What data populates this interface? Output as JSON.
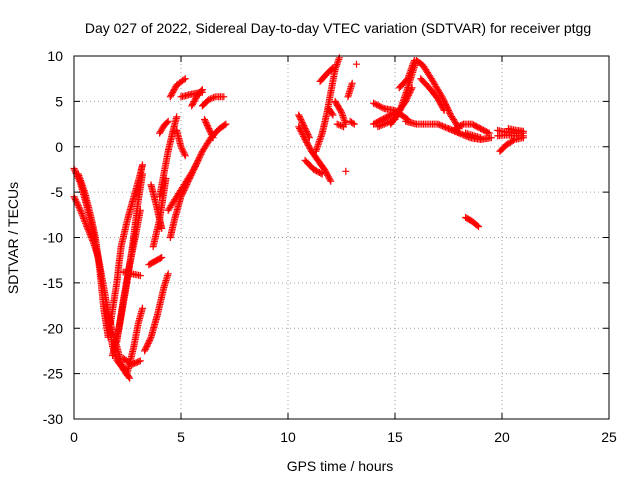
{
  "chart_data": {
    "type": "scatter",
    "title": "Day 027 of 2022, Sidereal Day-to-day VTEC variation (SDTVAR) for receiver ptgg",
    "xlabel": "GPS time / hours",
    "ylabel": "SDTVAR / TECUs",
    "xlim": [
      0,
      25
    ],
    "ylim": [
      -30,
      10
    ],
    "x_ticks": [
      0,
      5,
      10,
      15,
      20,
      25
    ],
    "y_ticks": [
      -30,
      -25,
      -20,
      -15,
      -10,
      -5,
      0,
      5,
      10
    ],
    "grid": true,
    "marker": "+",
    "colors": {
      "series": "#ff0000",
      "grid": "#a0a0a0",
      "axes": "#000000"
    },
    "tracks": [
      [
        [
          0.0,
          -2.4
        ],
        [
          0.3,
          -4.0
        ],
        [
          0.6,
          -6.5
        ],
        [
          0.9,
          -9.5
        ],
        [
          1.2,
          -13.0
        ],
        [
          1.5,
          -17.0
        ],
        [
          1.8,
          -20.5
        ],
        [
          2.0,
          -22.0
        ],
        [
          2.2,
          -23.8
        ],
        [
          2.5,
          -25.2
        ]
      ],
      [
        [
          0.0,
          -5.5
        ],
        [
          0.3,
          -7.0
        ],
        [
          0.6,
          -8.8
        ],
        [
          0.9,
          -10.5
        ],
        [
          1.1,
          -12.0
        ]
      ],
      [
        [
          0.2,
          -3.0
        ],
        [
          0.5,
          -5.0
        ],
        [
          0.8,
          -7.8
        ],
        [
          1.0,
          -10.0
        ],
        [
          1.2,
          -13.5
        ],
        [
          1.4,
          -18.0
        ],
        [
          1.6,
          -21.0
        ]
      ],
      [
        [
          1.6,
          -19.0
        ],
        [
          1.8,
          -22.0
        ],
        [
          2.0,
          -23.5
        ],
        [
          2.3,
          -24.5
        ],
        [
          2.6,
          -25.5
        ]
      ],
      [
        [
          1.7,
          -19.5
        ],
        [
          2.0,
          -15.0
        ],
        [
          2.2,
          -11.0
        ],
        [
          2.5,
          -8.0
        ],
        [
          2.8,
          -5.5
        ],
        [
          3.1,
          -3.0
        ],
        [
          3.2,
          -2.0
        ]
      ],
      [
        [
          1.8,
          -23.0
        ],
        [
          2.1,
          -20.0
        ],
        [
          2.4,
          -16.0
        ],
        [
          2.7,
          -11.5
        ],
        [
          3.0,
          -6.0
        ],
        [
          3.2,
          -3.0
        ]
      ],
      [
        [
          2.0,
          -21.5
        ],
        [
          2.3,
          -17.0
        ],
        [
          2.6,
          -13.0
        ],
        [
          2.9,
          -9.5
        ],
        [
          3.1,
          -7.0
        ]
      ],
      [
        [
          2.3,
          -13.8
        ],
        [
          2.7,
          -14.0
        ],
        [
          3.1,
          -14.2
        ]
      ],
      [
        [
          2.3,
          -23.3
        ],
        [
          2.7,
          -24.0
        ],
        [
          3.1,
          -23.6
        ]
      ],
      [
        [
          2.5,
          -24.8
        ],
        [
          2.8,
          -22.0
        ],
        [
          3.0,
          -19.5
        ],
        [
          3.2,
          -17.8
        ]
      ],
      [
        [
          3.3,
          -22.5
        ],
        [
          3.6,
          -21.0
        ],
        [
          3.9,
          -18.5
        ],
        [
          4.2,
          -15.5
        ],
        [
          4.4,
          -14.0
        ]
      ],
      [
        [
          3.5,
          -13.0
        ],
        [
          3.8,
          -12.6
        ],
        [
          4.1,
          -12.2
        ]
      ],
      [
        [
          3.6,
          -4.2
        ],
        [
          3.8,
          -6.0
        ],
        [
          4.0,
          -8.0
        ],
        [
          4.1,
          -9.0
        ]
      ],
      [
        [
          3.7,
          -11.0
        ],
        [
          4.0,
          -8.0
        ],
        [
          4.2,
          -5.0
        ],
        [
          4.3,
          -3.5
        ]
      ],
      [
        [
          4.0,
          -5.5
        ],
        [
          4.2,
          -3.0
        ],
        [
          4.4,
          -0.5
        ],
        [
          4.6,
          1.5
        ],
        [
          4.8,
          3.3
        ]
      ],
      [
        [
          4.4,
          -7.0
        ],
        [
          4.8,
          -5.5
        ],
        [
          5.2,
          -4.0
        ],
        [
          5.6,
          -2.5
        ],
        [
          6.0,
          -0.5
        ],
        [
          6.4,
          1.0
        ],
        [
          6.8,
          2.0
        ],
        [
          7.1,
          2.5
        ]
      ],
      [
        [
          4.5,
          -10.0
        ],
        [
          4.7,
          -8.0
        ],
        [
          5.0,
          -5.5
        ],
        [
          5.3,
          -4.0
        ],
        [
          5.7,
          -2.0
        ]
      ],
      [
        [
          4.0,
          1.5
        ],
        [
          4.2,
          2.3
        ],
        [
          4.4,
          2.8
        ]
      ],
      [
        [
          4.8,
          1.8
        ],
        [
          5.0,
          0.0
        ],
        [
          5.2,
          -1.0
        ]
      ],
      [
        [
          4.5,
          5.5
        ],
        [
          4.8,
          6.8
        ],
        [
          5.2,
          7.5
        ]
      ],
      [
        [
          5.0,
          5.5
        ],
        [
          5.5,
          5.8
        ],
        [
          6.0,
          6.0
        ]
      ],
      [
        [
          5.5,
          4.5
        ],
        [
          5.8,
          5.8
        ],
        [
          6.0,
          6.3
        ]
      ],
      [
        [
          6.0,
          4.5
        ],
        [
          6.3,
          5.2
        ],
        [
          6.6,
          5.5
        ],
        [
          7.0,
          5.5
        ]
      ],
      [
        [
          6.1,
          3.0
        ],
        [
          6.3,
          2.0
        ],
        [
          6.5,
          1.0
        ]
      ],
      [
        [
          10.5,
          2.2
        ],
        [
          10.8,
          0.8
        ],
        [
          11.1,
          -0.5
        ],
        [
          11.4,
          -1.5
        ],
        [
          11.7,
          -2.5
        ],
        [
          12.0,
          -3.8
        ]
      ],
      [
        [
          10.5,
          3.5
        ],
        [
          10.8,
          2.0
        ],
        [
          11.0,
          1.0
        ]
      ],
      [
        [
          10.8,
          -1.5
        ],
        [
          11.2,
          -2.5
        ],
        [
          11.6,
          -3.0
        ]
      ],
      [
        [
          11.3,
          -0.5
        ],
        [
          11.6,
          1.5
        ],
        [
          11.8,
          3.5
        ],
        [
          12.0,
          6.0
        ],
        [
          12.2,
          8.5
        ],
        [
          12.4,
          9.8
        ]
      ],
      [
        [
          11.5,
          7.2
        ],
        [
          11.8,
          8.0
        ],
        [
          12.1,
          8.7
        ]
      ],
      [
        [
          11.9,
          4.2
        ],
        [
          12.1,
          3.5
        ]
      ],
      [
        [
          12.2,
          5.0
        ],
        [
          12.5,
          3.8
        ],
        [
          12.7,
          2.5
        ]
      ],
      [
        [
          12.3,
          2.5
        ],
        [
          12.6,
          2.2
        ]
      ],
      [
        [
          12.9,
          2.8
        ],
        [
          13.1,
          2.5
        ]
      ],
      [
        [
          12.8,
          5.5
        ],
        [
          13.0,
          7.0
        ]
      ],
      [
        [
          12.7,
          -2.7
        ]
      ],
      [
        [
          13.2,
          9.1
        ]
      ],
      [
        [
          14.0,
          4.8
        ],
        [
          14.5,
          4.2
        ],
        [
          15.0,
          4.0
        ],
        [
          15.3,
          3.5
        ],
        [
          15.6,
          3.0
        ]
      ],
      [
        [
          14.0,
          2.5
        ],
        [
          14.4,
          3.0
        ],
        [
          14.8,
          3.5
        ],
        [
          15.2,
          4.0
        ],
        [
          15.5,
          5.0
        ],
        [
          15.8,
          6.5
        ]
      ],
      [
        [
          14.2,
          2.2
        ],
        [
          14.5,
          2.5
        ],
        [
          15.0,
          3.0
        ]
      ],
      [
        [
          14.8,
          2.5
        ],
        [
          15.2,
          3.8
        ],
        [
          15.5,
          5.8
        ],
        [
          15.8,
          8.0
        ],
        [
          16.0,
          9.5
        ],
        [
          16.3,
          9.0
        ],
        [
          16.7,
          7.5
        ],
        [
          17.2,
          5.5
        ],
        [
          17.6,
          3.5
        ],
        [
          18.0,
          2.0
        ]
      ],
      [
        [
          15.2,
          6.5
        ],
        [
          15.6,
          7.5
        ],
        [
          15.9,
          9.5
        ]
      ],
      [
        [
          15.5,
          2.8
        ],
        [
          16.0,
          2.5
        ],
        [
          16.5,
          2.5
        ],
        [
          17.0,
          2.5
        ],
        [
          17.5,
          2.0
        ],
        [
          18.0,
          1.5
        ]
      ],
      [
        [
          16.2,
          7.5
        ],
        [
          16.6,
          6.5
        ],
        [
          17.0,
          5.3
        ],
        [
          17.3,
          4.0
        ]
      ],
      [
        [
          17.5,
          2.0
        ],
        [
          18.0,
          1.5
        ],
        [
          18.5,
          1.0
        ],
        [
          19.0,
          0.8
        ],
        [
          19.5,
          1.0
        ]
      ],
      [
        [
          17.8,
          2.0
        ],
        [
          18.2,
          2.5
        ],
        [
          18.6,
          2.5
        ],
        [
          19.0,
          2.0
        ],
        [
          19.4,
          1.5
        ]
      ],
      [
        [
          18.3,
          1.5
        ],
        [
          18.7,
          1.2
        ],
        [
          19.0,
          1.0
        ]
      ],
      [
        [
          18.3,
          -7.8
        ],
        [
          18.6,
          -8.2
        ],
        [
          18.9,
          -8.8
        ]
      ],
      [
        [
          19.9,
          -0.5
        ],
        [
          20.2,
          0.2
        ],
        [
          20.6,
          0.8
        ],
        [
          21.0,
          1.0
        ]
      ],
      [
        [
          19.8,
          1.8
        ],
        [
          20.2,
          1.6
        ],
        [
          20.6,
          1.5
        ],
        [
          21.0,
          1.5
        ]
      ],
      [
        [
          19.8,
          1.2
        ],
        [
          20.2,
          1.3
        ],
        [
          20.6,
          1.2
        ],
        [
          21.0,
          1.2
        ]
      ],
      [
        [
          20.3,
          2.0
        ],
        [
          20.7,
          1.8
        ],
        [
          21.0,
          1.7
        ]
      ]
    ]
  }
}
